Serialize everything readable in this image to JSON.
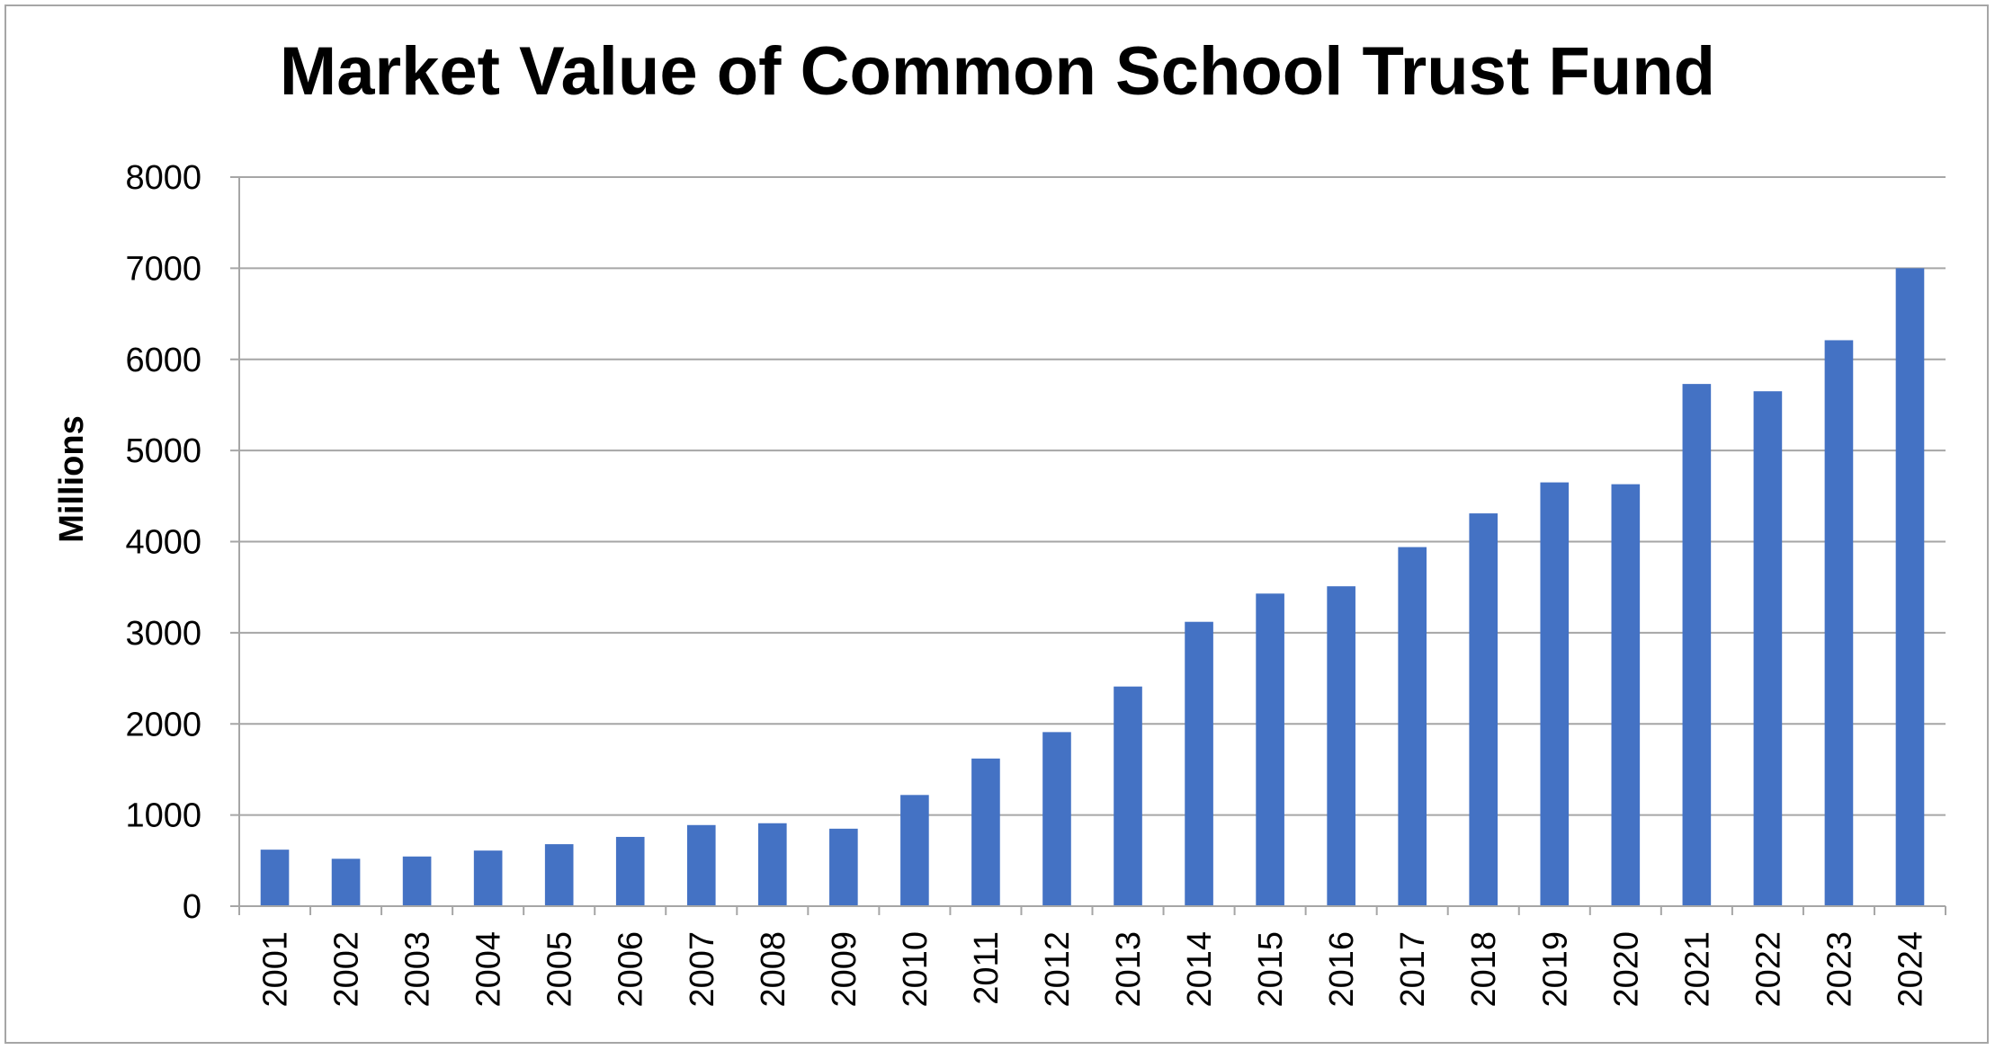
{
  "chart_data": {
    "type": "bar",
    "title": "Market Value of Common School Trust Fund",
    "xlabel": "",
    "ylabel": "Millions",
    "ylim": [
      0,
      8000
    ],
    "yticks": [
      0,
      1000,
      2000,
      3000,
      4000,
      5000,
      6000,
      7000,
      8000
    ],
    "grid": true,
    "legend": "none",
    "categories": [
      "2001",
      "2002",
      "2003",
      "2004",
      "2005",
      "2006",
      "2007",
      "2008",
      "2009",
      "2010",
      "2011",
      "2012",
      "2013",
      "2014",
      "2015",
      "2016",
      "2017",
      "2018",
      "2019",
      "2020",
      "2021",
      "2022",
      "2023",
      "2024"
    ],
    "values": [
      620,
      520,
      545,
      610,
      680,
      760,
      890,
      910,
      850,
      1220,
      1620,
      1910,
      2410,
      3120,
      3430,
      3510,
      3940,
      4310,
      4650,
      4630,
      5730,
      5650,
      6210,
      7000
    ],
    "colors": {
      "bar": "#4472c4",
      "grid": "#a6a6a6",
      "axis": "#a6a6a6",
      "frame": "#a6a6a6"
    }
  }
}
